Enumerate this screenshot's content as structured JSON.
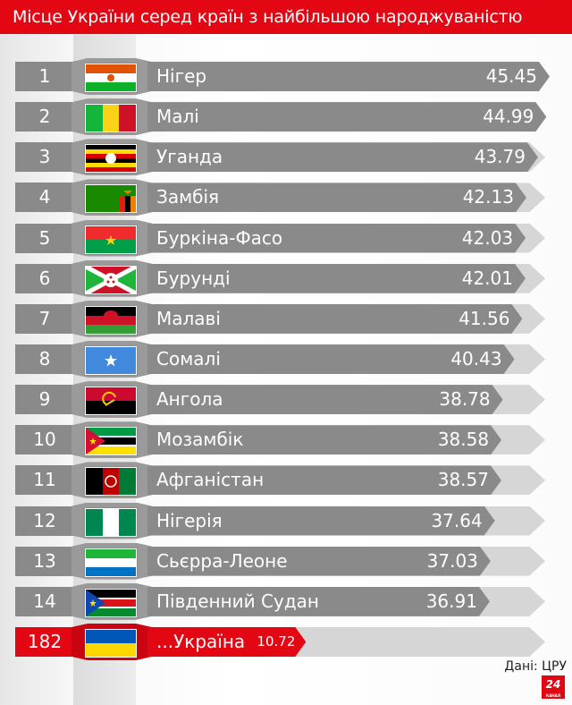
{
  "title": "Місце України серед країн з найбільшою народжуваністю",
  "source": "Дані: ЦРУ",
  "logo": {
    "number": "24",
    "caption": "КАНАЛ"
  },
  "colors": {
    "accent": "#e30613",
    "bar": "#8a8a8a",
    "track": "#d6d6d6"
  },
  "chart_data": {
    "type": "bar",
    "title": "Місце України серед країн з найбільшою народжуваністю",
    "orientation": "horizontal",
    "rows": [
      {
        "rank": "1",
        "country": "Нігер",
        "value": 45.45,
        "flag": "flag-niger"
      },
      {
        "rank": "2",
        "country": "Малі",
        "value": 44.99,
        "flag": "flag-mali"
      },
      {
        "rank": "3",
        "country": "Уганда",
        "value": 43.79,
        "flag": "flag-uganda"
      },
      {
        "rank": "4",
        "country": "Замбія",
        "value": 42.13,
        "flag": "flag-zambia"
      },
      {
        "rank": "5",
        "country": "Буркіна-Фасо",
        "value": 42.03,
        "flag": "flag-burkina"
      },
      {
        "rank": "6",
        "country": "Бурунді",
        "value": 42.01,
        "flag": "flag-burundi"
      },
      {
        "rank": "7",
        "country": "Малаві",
        "value": 41.56,
        "flag": "flag-malawi"
      },
      {
        "rank": "8",
        "country": "Сомалі",
        "value": 40.43,
        "flag": "flag-somalia"
      },
      {
        "rank": "9",
        "country": "Ангола",
        "value": 38.78,
        "flag": "flag-angola"
      },
      {
        "rank": "10",
        "country": "Мозамбік",
        "value": 38.58,
        "flag": "flag-mozambique"
      },
      {
        "rank": "11",
        "country": "Афганістан",
        "value": 38.57,
        "flag": "flag-afghanistan"
      },
      {
        "rank": "12",
        "country": "Нігерія",
        "value": 37.64,
        "flag": "flag-nigeria"
      },
      {
        "rank": "13",
        "country": "Сьєрра-Леоне",
        "value": 37.03,
        "flag": "flag-sierra-leone"
      },
      {
        "rank": "14",
        "country": "Південний Судан",
        "value": 36.91,
        "flag": "flag-south-sudan"
      },
      {
        "rank": "182",
        "country": "...Україна",
        "value": 10.72,
        "flag": "flag-ukraine",
        "highlight": true
      }
    ]
  }
}
